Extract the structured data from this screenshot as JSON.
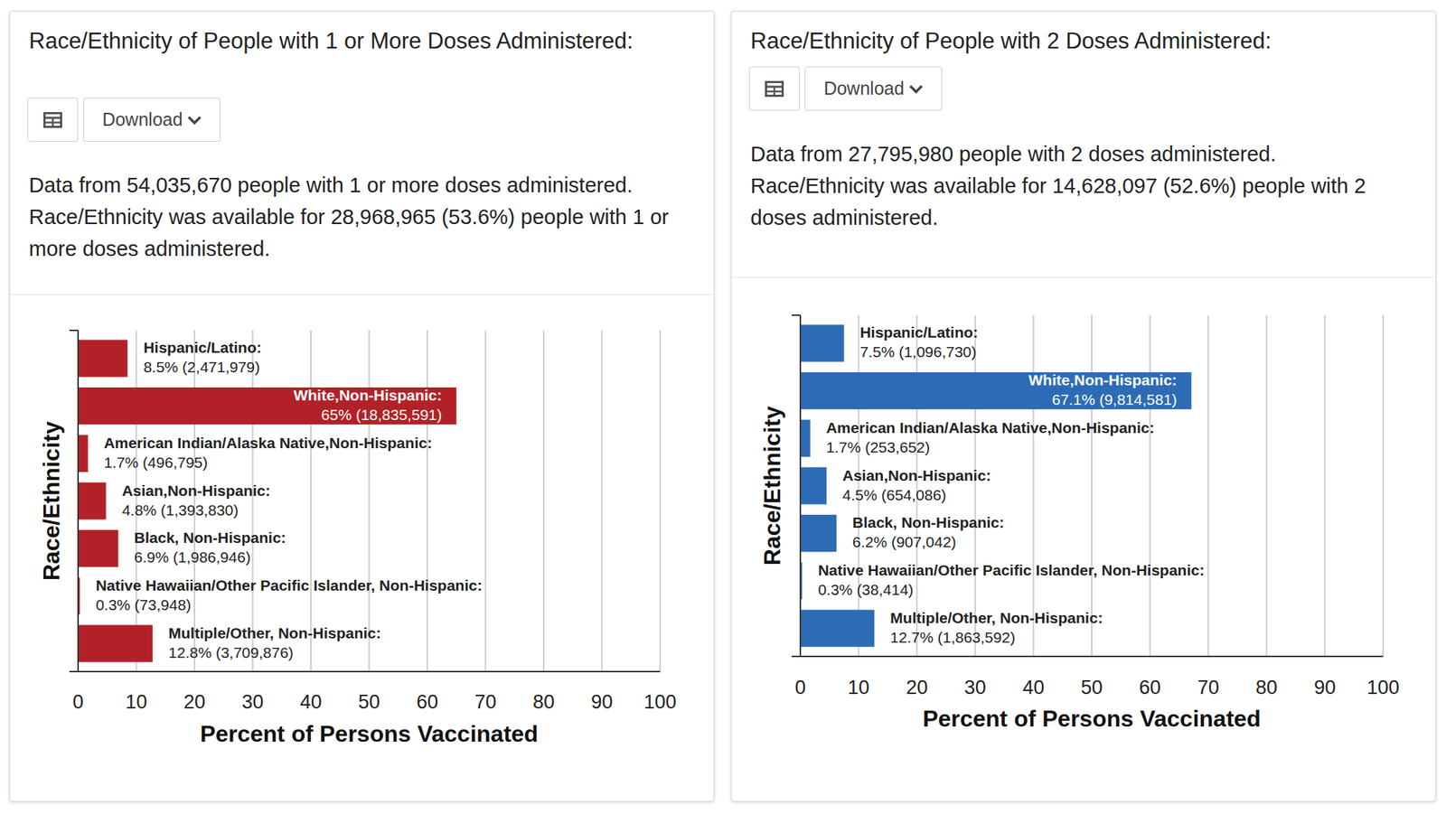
{
  "chart_data": [
    {
      "type": "bar",
      "orientation": "horizontal",
      "title": "Race/Ethnicity of People with 1 or More Doses Administered:",
      "subtitle": "Data from 54,035,670 people with 1 or more doses administered. Race/Ethnicity was available for 28,968,965 (53.6%) people with 1 or more doses administered.",
      "annotations": [
        "Download"
      ],
      "categories": [
        "Hispanic/Latino:",
        "White,Non-Hispanic:",
        "American Indian/Alaska Native,Non-Hispanic:",
        "Asian,Non-Hispanic:",
        "Black, Non-Hispanic:",
        "Native Hawaiian/Other Pacific Islander, Non-Hispanic:",
        "Multiple/Other, Non-Hispanic:"
      ],
      "values": [
        8.5,
        65,
        1.7,
        4.8,
        6.9,
        0.3,
        12.8
      ],
      "value_labels": [
        "8.5% (2,471,979)",
        "65% (18,835,591)",
        "1.7% (496,795)",
        "4.8% (1,393,830)",
        "6.9% (1,986,946)",
        "0.3% (73,948)",
        "12.8% (3,709,876)"
      ],
      "color": "#b32128",
      "xlim": [
        0,
        100
      ],
      "xticks": [
        0,
        10,
        20,
        30,
        40,
        50,
        60,
        70,
        80,
        90,
        100
      ],
      "x_label": "Percent of Persons Vaccinated",
      "y_label": "Race/Ethnicity",
      "grid": true,
      "data_labels": true
    },
    {
      "type": "bar",
      "orientation": "horizontal",
      "title": "Race/Ethnicity of People with 2 Doses Administered:",
      "subtitle": "Data from 27,795,980 people with 2 doses administered. Race/Ethnicity was available for 14,628,097 (52.6%) people with 2 doses administered.",
      "annotations": [
        "Download"
      ],
      "categories": [
        "Hispanic/Latino:",
        "White,Non-Hispanic:",
        "American Indian/Alaska Native,Non-Hispanic:",
        "Asian,Non-Hispanic:",
        "Black, Non-Hispanic:",
        "Native Hawaiian/Other Pacific Islander, Non-Hispanic:",
        "Multiple/Other, Non-Hispanic:"
      ],
      "values": [
        7.5,
        67.1,
        1.7,
        4.5,
        6.2,
        0.3,
        12.7
      ],
      "value_labels": [
        "7.5% (1,096,730)",
        "67.1% (9,814,581)",
        "1.7% (253,652)",
        "4.5% (654,086)",
        "6.2% (907,042)",
        "0.3% (38,414)",
        "12.7% (1,863,592)"
      ],
      "color": "#2d6cb5",
      "xlim": [
        0,
        100
      ],
      "xticks": [
        0,
        10,
        20,
        30,
        40,
        50,
        60,
        70,
        80,
        90,
        100
      ],
      "x_label": "Percent of Persons Vaccinated",
      "y_label": "Race/Ethnicity",
      "grid": true,
      "data_labels": true
    }
  ]
}
